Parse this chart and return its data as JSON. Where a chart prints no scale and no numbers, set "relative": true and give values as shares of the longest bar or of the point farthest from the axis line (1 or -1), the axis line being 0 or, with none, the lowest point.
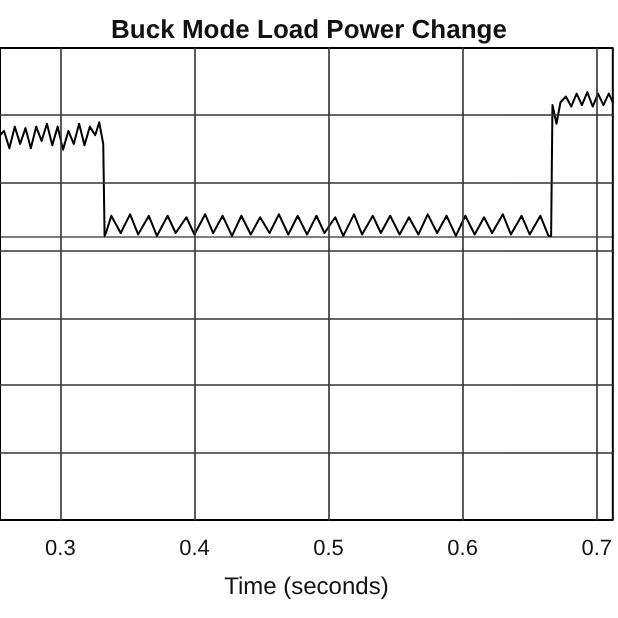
{
  "chart_data": {
    "type": "line",
    "title": "Buck Mode Load Power Change",
    "xlabel": "Time (seconds)",
    "relative": true,
    "grid": true,
    "marker": "none",
    "line_style": "solid",
    "xlim": [
      0.255,
      0.712
    ],
    "xticks": [
      0.3,
      0.4,
      0.5,
      0.6,
      0.7
    ],
    "series": [
      {
        "color": "#000000",
        "x": [
          0.255,
          0.258,
          0.262,
          0.266,
          0.27,
          0.274,
          0.278,
          0.282,
          0.286,
          0.29,
          0.294,
          0.298,
          0.302,
          0.306,
          0.31,
          0.314,
          0.318,
          0.322,
          0.326,
          0.329,
          0.332,
          0.333,
          0.334,
          0.338,
          0.345,
          0.352,
          0.358,
          0.366,
          0.372,
          0.38,
          0.386,
          0.394,
          0.4,
          0.408,
          0.414,
          0.421,
          0.428,
          0.435,
          0.442,
          0.449,
          0.456,
          0.463,
          0.47,
          0.477,
          0.484,
          0.491,
          0.497,
          0.505,
          0.511,
          0.519,
          0.525,
          0.533,
          0.539,
          0.546,
          0.553,
          0.56,
          0.567,
          0.574,
          0.581,
          0.588,
          0.595,
          0.602,
          0.609,
          0.616,
          0.622,
          0.63,
          0.636,
          0.644,
          0.65,
          0.658,
          0.664,
          0.666,
          0.667,
          0.67,
          0.673,
          0.677,
          0.681,
          0.685,
          0.689,
          0.693,
          0.697,
          0.701,
          0.705,
          0.709,
          0.712
        ],
        "values": [
          0.7,
          0.73,
          0.61,
          0.76,
          0.64,
          0.75,
          0.61,
          0.76,
          0.66,
          0.78,
          0.63,
          0.76,
          0.6,
          0.73,
          0.64,
          0.78,
          0.63,
          0.76,
          0.7,
          0.79,
          0.64,
          0,
          0.02,
          0.14,
          0.02,
          0.15,
          0.01,
          0.14,
          0,
          0.14,
          0.02,
          0.13,
          0.01,
          0.15,
          0.02,
          0.14,
          0,
          0.14,
          0.01,
          0.13,
          0.02,
          0.15,
          0.01,
          0.14,
          0.01,
          0.14,
          0.02,
          0.13,
          0,
          0.15,
          0.01,
          0.14,
          0.02,
          0.14,
          0.01,
          0.13,
          0.01,
          0.15,
          0.02,
          0.14,
          0,
          0.14,
          0.01,
          0.13,
          0.02,
          0.15,
          0.01,
          0.14,
          0.01,
          0.14,
          0,
          0,
          0.91,
          0.78,
          0.93,
          0.97,
          0.9,
          0.99,
          0.91,
          1,
          0.9,
          0.99,
          0.91,
          0.99,
          0.93
        ]
      }
    ]
  }
}
